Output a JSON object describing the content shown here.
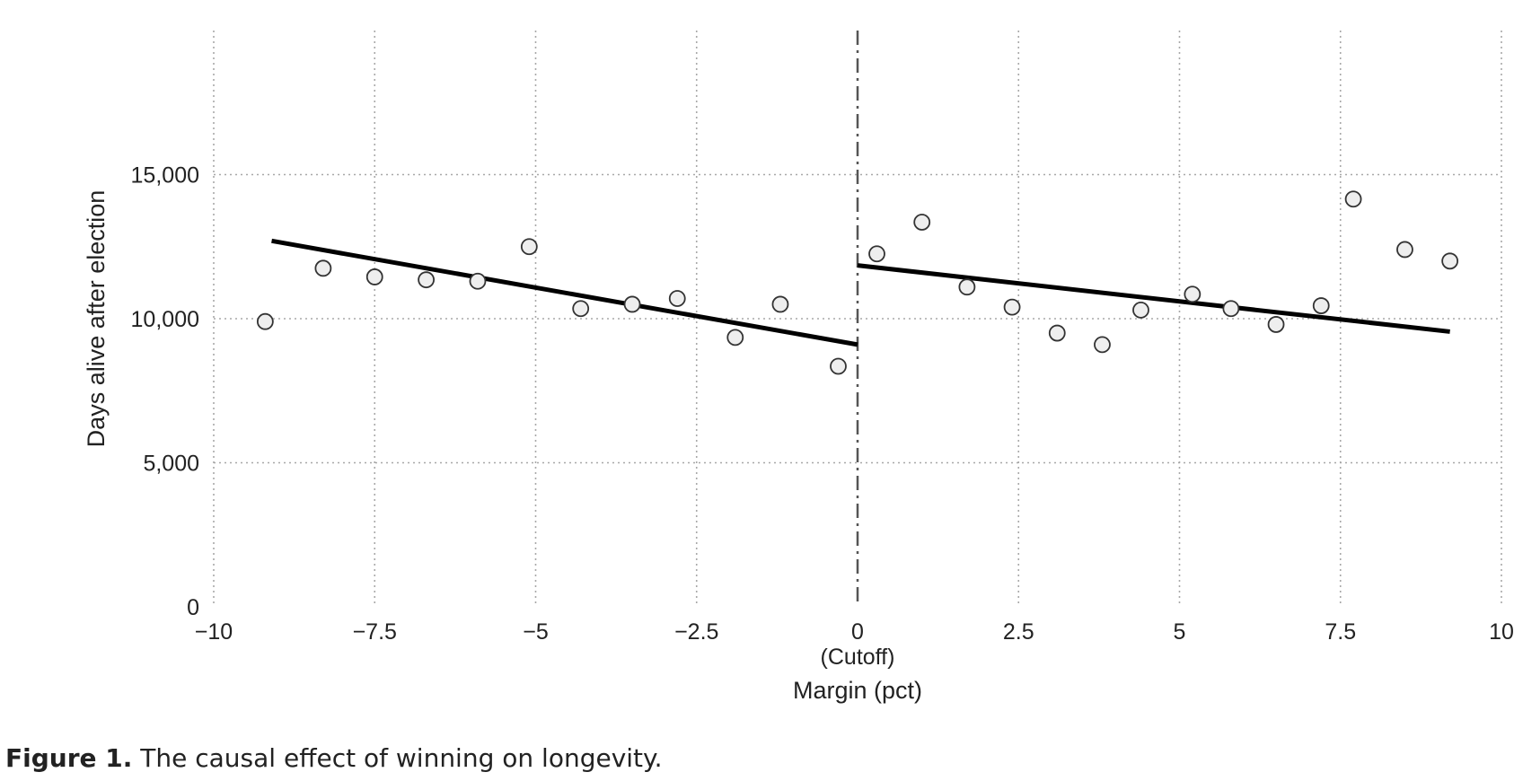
{
  "chart_data": {
    "type": "scatter",
    "title": "",
    "xlabel": "Margin (pct)",
    "ylabel": "Days alive after election",
    "xlim": [
      -10,
      10
    ],
    "ylim": [
      0,
      20000
    ],
    "grid": true,
    "x_ticks": [
      -10,
      -7.5,
      -5,
      -2.5,
      0,
      2.5,
      5,
      7.5,
      10
    ],
    "x_tick_labels": [
      "−10",
      "−7.5",
      "−5",
      "−2.5",
      "0",
      "2.5",
      "5",
      "7.5",
      "10"
    ],
    "y_ticks": [
      0,
      5000,
      10000,
      15000
    ],
    "y_tick_labels": [
      "0",
      "5,000",
      "10,000",
      "15,000"
    ],
    "cutoff": {
      "x": 0,
      "label": "(Cutoff)"
    },
    "points": {
      "x": [
        -9.2,
        -8.3,
        -7.5,
        -6.7,
        -5.9,
        -5.1,
        -4.3,
        -3.5,
        -2.8,
        -1.9,
        -1.2,
        -0.3,
        0.3,
        1.0,
        1.7,
        2.4,
        3.1,
        3.8,
        4.4,
        5.2,
        5.8,
        6.5,
        7.2,
        7.7,
        8.5,
        9.2
      ],
      "y": [
        9900,
        11750,
        11450,
        11350,
        11300,
        12500,
        10350,
        10500,
        10700,
        9350,
        10500,
        8350,
        12250,
        13350,
        11100,
        10400,
        9500,
        9100,
        10300,
        10850,
        10350,
        9800,
        10450,
        14150,
        12400,
        12000
      ]
    },
    "fit_lines": [
      {
        "x": [
          -9.1,
          0
        ],
        "y": [
          12700,
          9100
        ]
      },
      {
        "x": [
          0,
          9.2
        ],
        "y": [
          11850,
          9550
        ]
      }
    ]
  },
  "caption": {
    "label": "Figure 1.",
    "text": "The causal effect of winning on longevity."
  }
}
